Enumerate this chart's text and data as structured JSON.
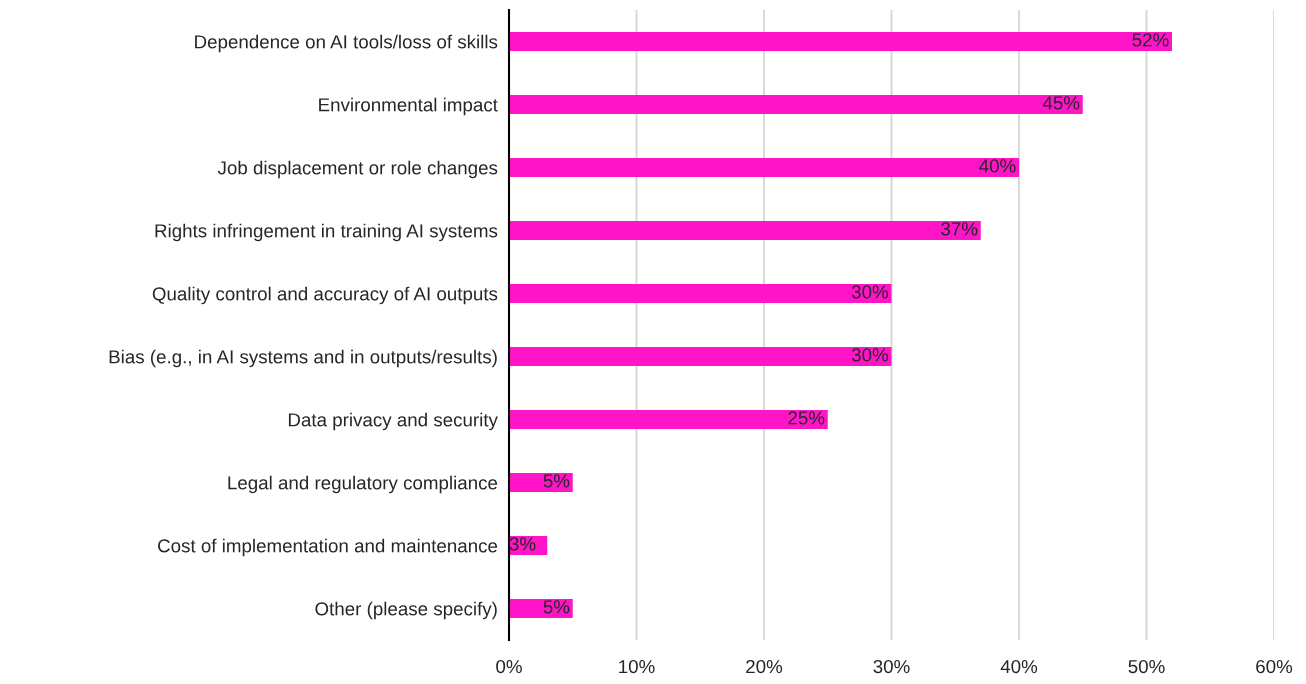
{
  "chart_data": {
    "type": "bar",
    "orientation": "horizontal",
    "categories": [
      "Dependence on AI tools/loss of skills",
      "Environmental impact",
      "Job displacement or role changes",
      "Rights infringement in training AI systems",
      "Quality control and accuracy of AI outputs",
      "Bias (e.g., in AI systems and in outputs/results)",
      "Data privacy and security",
      "Legal and regulatory compliance",
      "Cost of implementation and maintenance",
      "Other (please specify)"
    ],
    "values": [
      52,
      45,
      40,
      37,
      30,
      30,
      25,
      5,
      3,
      5
    ],
    "value_labels": [
      "52%",
      "45%",
      "40%",
      "37%",
      "30%",
      "30%",
      "25%",
      "5%",
      "3%",
      "5%"
    ],
    "color": "#ff14c8",
    "xlim": [
      0,
      60
    ],
    "xticks": [
      {
        "value": 0,
        "label": "0%"
      },
      {
        "value": 10,
        "label": "10%"
      },
      {
        "value": 20,
        "label": "20%"
      },
      {
        "value": 30,
        "label": "30%"
      },
      {
        "value": 40,
        "label": "40%"
      },
      {
        "value": 50,
        "label": "50%"
      },
      {
        "value": 60,
        "label": "60%"
      }
    ],
    "grid": "x",
    "legend": false
  }
}
